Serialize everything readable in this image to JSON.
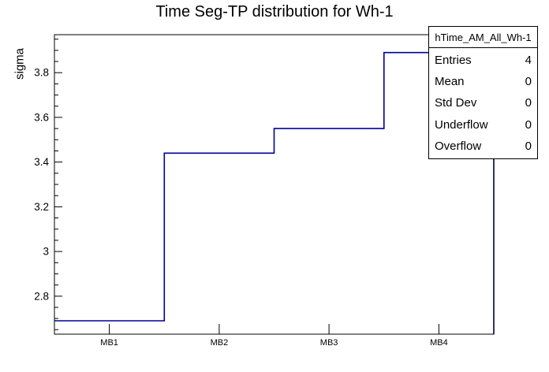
{
  "title": "Time Seg-TP distribution for Wh-1",
  "chart_data": {
    "type": "line",
    "style": "step-histogram",
    "title": "Time Seg-TP distribution for Wh-1",
    "categories": [
      "MB1",
      "MB2",
      "MB3",
      "MB4"
    ],
    "values": [
      2.69,
      3.44,
      3.55,
      3.89
    ],
    "xlabel": "",
    "ylabel": "sigma",
    "ylim": [
      2.63,
      3.97
    ],
    "yticks": [
      2.8,
      3.0,
      3.2,
      3.4,
      3.6,
      3.8
    ],
    "ytick_labels": [
      "2.8",
      "3",
      "3.2",
      "3.4",
      "3.6",
      "3.8"
    ],
    "yminor_step": 0.05,
    "line_color": "#000099",
    "frame_color": "#000000",
    "grid": false,
    "legend": false
  },
  "stats_box": {
    "header": "hTime_AM_All_Wh-1",
    "rows": [
      {
        "label": "Entries",
        "value": "4"
      },
      {
        "label": "Mean",
        "value": "0"
      },
      {
        "label": "Std Dev",
        "value": "0"
      },
      {
        "label": "Underflow",
        "value": "0"
      },
      {
        "label": "Overflow",
        "value": "0"
      }
    ]
  }
}
